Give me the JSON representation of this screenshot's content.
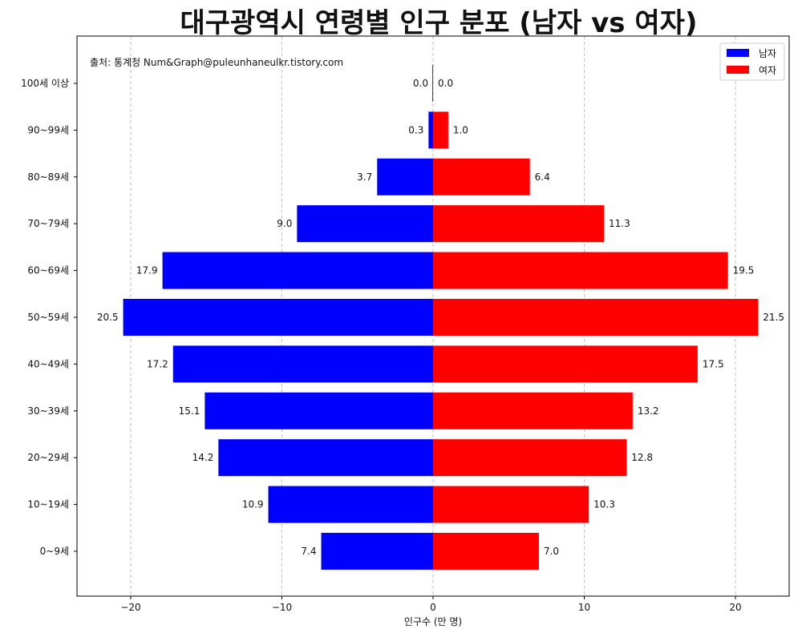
{
  "chart_data": {
    "type": "bar",
    "orientation": "horizontal",
    "title": "대구광역시 연령별 인구 분포 (남자 vs 여자)",
    "xlabel": "인구수 (만 명)",
    "ylabel": "",
    "xlim": [
      -23.6,
      23.6
    ],
    "xticks": [
      -20,
      -10,
      0,
      10,
      20
    ],
    "xtick_labels": [
      "−20",
      "−10",
      "0",
      "10",
      "20"
    ],
    "grid": "x, dashed",
    "legend_position": "top-right",
    "categories": [
      "100세 이상",
      "90~99세",
      "80~89세",
      "70~79세",
      "60~69세",
      "50~59세",
      "40~49세",
      "30~39세",
      "20~29세",
      "10~19세",
      "0~9세"
    ],
    "series": [
      {
        "name": "남자",
        "color": "#0000ff",
        "values": [
          0.0,
          0.3,
          3.7,
          9.0,
          17.9,
          20.5,
          17.2,
          15.1,
          14.2,
          10.9,
          7.4
        ]
      },
      {
        "name": "여자",
        "color": "#ff0000",
        "values": [
          0.0,
          1.0,
          6.4,
          11.3,
          19.5,
          21.5,
          17.5,
          13.2,
          12.8,
          10.3,
          7.0
        ]
      }
    ],
    "annotation": "출처: 통계청 Num&Graph@puleunhaneulkr.tistory.com"
  }
}
